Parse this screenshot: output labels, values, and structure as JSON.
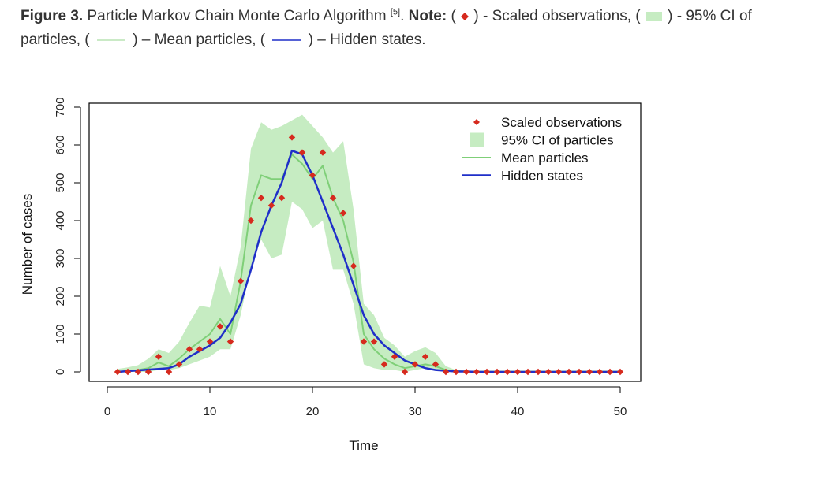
{
  "caption": {
    "figure_label": "Figure 3.",
    "title": "Particle Markov Chain Monte Carlo Algorithm",
    "ref": "[5]",
    "note_label": "Note:",
    "obs_text": ") - Scaled observations, (",
    "ci_text": ") - 95% CI of",
    "particles_prefix": "particles, (",
    "mean_text": ") – Mean particles, (",
    "hidden_text": ") – Hidden states."
  },
  "colors": {
    "observations": "#d62a1e",
    "ci": "#c6ecc2",
    "mean": "#7fcf78",
    "hidden": "#1f2fc9"
  },
  "chart_data": {
    "type": "line",
    "title": "",
    "xlabel": "Time",
    "ylabel": "Number of cases",
    "xlim": [
      0,
      50
    ],
    "ylim": [
      0,
      700
    ],
    "x_ticks": [
      0,
      10,
      20,
      30,
      40,
      50
    ],
    "y_ticks": [
      0,
      100,
      200,
      300,
      400,
      500,
      600,
      700
    ],
    "legend": {
      "position": "top-right",
      "entries": [
        "Scaled observations",
        "95% CI of particles",
        "Mean particles",
        "Hidden states"
      ]
    },
    "x": [
      1,
      2,
      3,
      4,
      5,
      6,
      7,
      8,
      9,
      10,
      11,
      12,
      13,
      14,
      15,
      16,
      17,
      18,
      19,
      20,
      21,
      22,
      23,
      24,
      25,
      26,
      27,
      28,
      29,
      30,
      31,
      32,
      33,
      34,
      35,
      36,
      37,
      38,
      39,
      40,
      41,
      42,
      43,
      44,
      45,
      46,
      47,
      48,
      49,
      50
    ],
    "series": [
      {
        "name": "Scaled observations",
        "style": "points",
        "values": [
          0,
          0,
          0,
          0,
          40,
          0,
          20,
          60,
          60,
          80,
          120,
          80,
          240,
          400,
          460,
          440,
          460,
          620,
          580,
          520,
          580,
          460,
          420,
          280,
          80,
          80,
          20,
          40,
          0,
          20,
          40,
          20,
          0,
          0,
          0,
          0,
          0,
          0,
          0,
          0,
          0,
          0,
          0,
          0,
          0,
          0,
          0,
          0,
          0,
          0
        ]
      },
      {
        "name": "95% CI of particles",
        "style": "band",
        "lower": [
          0,
          0,
          0,
          0,
          5,
          5,
          10,
          20,
          30,
          40,
          60,
          60,
          150,
          280,
          350,
          300,
          310,
          450,
          430,
          380,
          400,
          270,
          270,
          180,
          20,
          10,
          5,
          5,
          0,
          5,
          10,
          5,
          0,
          0,
          0,
          0,
          0,
          0,
          0,
          0,
          0,
          0,
          0,
          0,
          0,
          0,
          0,
          0,
          0,
          0
        ],
        "upper": [
          8,
          12,
          18,
          35,
          60,
          50,
          80,
          130,
          175,
          170,
          280,
          200,
          330,
          590,
          660,
          640,
          650,
          665,
          680,
          650,
          620,
          580,
          610,
          430,
          180,
          150,
          90,
          70,
          40,
          55,
          65,
          50,
          15,
          5,
          3,
          3,
          3,
          3,
          3,
          3,
          3,
          3,
          3,
          3,
          3,
          3,
          3,
          3,
          3,
          3
        ]
      },
      {
        "name": "Mean particles",
        "style": "line",
        "values": [
          0,
          2,
          5,
          10,
          25,
          15,
          35,
          60,
          80,
          100,
          140,
          100,
          240,
          440,
          520,
          510,
          510,
          575,
          550,
          510,
          545,
          460,
          400,
          290,
          100,
          60,
          35,
          20,
          10,
          15,
          20,
          15,
          5,
          2,
          1,
          1,
          1,
          1,
          1,
          1,
          1,
          1,
          1,
          1,
          1,
          1,
          1,
          1,
          1,
          1
        ]
      },
      {
        "name": "Hidden states",
        "style": "line",
        "values": [
          0,
          2,
          4,
          6,
          8,
          10,
          20,
          40,
          55,
          70,
          90,
          130,
          180,
          270,
          370,
          440,
          500,
          585,
          575,
          520,
          450,
          380,
          310,
          230,
          150,
          100,
          70,
          50,
          30,
          20,
          10,
          5,
          3,
          1,
          1,
          0,
          0,
          0,
          0,
          0,
          0,
          0,
          0,
          0,
          0,
          0,
          0,
          0,
          0,
          0
        ]
      }
    ]
  }
}
